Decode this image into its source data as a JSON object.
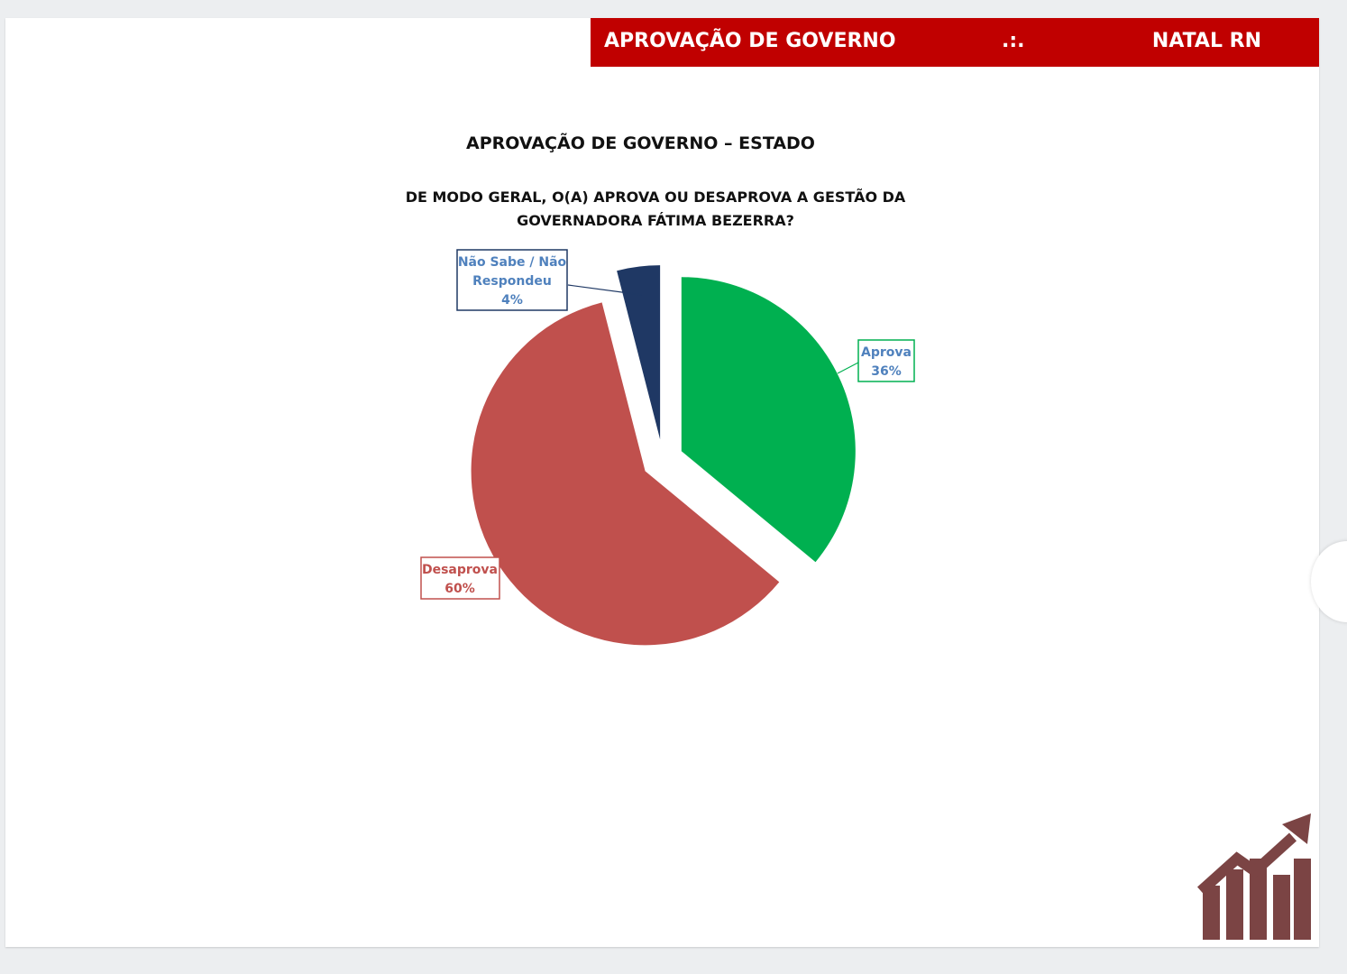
{
  "header": {
    "title": "APROVAÇÃO DE GOVERNO",
    "separator": ".:.",
    "location": "NATAL RN",
    "color": "#c00000"
  },
  "chart_data": {
    "type": "pie",
    "title": "APROVAÇÃO DE GOVERNO – ESTADO",
    "subtitle_lines": [
      "DE MODO GERAL, O(A) APROVA OU DESAPROVA A GESTÃO DA",
      "GOVERNADORA FÁTIMA BEZERRA?"
    ],
    "slices": [
      {
        "label_lines": [
          "Aprova"
        ],
        "value_label": "36%",
        "value": 36,
        "color": "#00b050",
        "label_color": "#4f81bd",
        "border_color": "#00b050"
      },
      {
        "label_lines": [
          "Desaprova"
        ],
        "value_label": "60%",
        "value": 60,
        "color": "#c0504d",
        "label_color": "#c0504d",
        "border_color": "#c0504d"
      },
      {
        "label_lines": [
          "Não Sabe / Não",
          "Respondeu"
        ],
        "value_label": "4%",
        "value": 4,
        "color": "#1f3864",
        "label_color": "#4f81bd",
        "border_color": "#1f3864"
      }
    ],
    "slices_exploded": true
  },
  "logo": {
    "icon": "bar-chart-arrow-icon",
    "color": "#7b4444"
  }
}
